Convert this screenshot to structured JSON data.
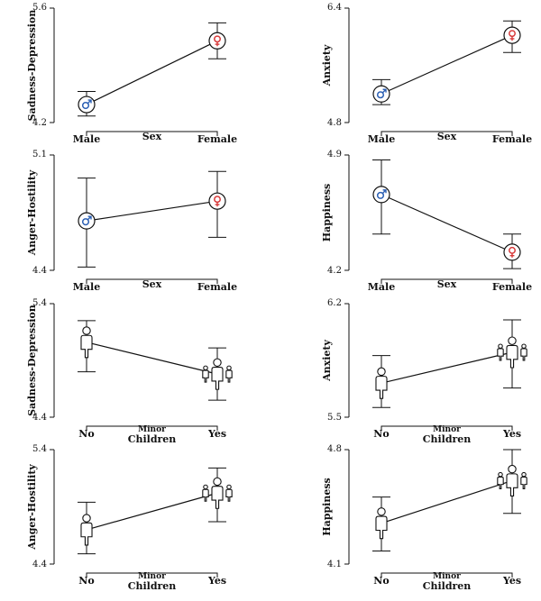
{
  "colors": {
    "male": "#2b5fb4",
    "female": "#d83a3a",
    "ink": "#111111"
  },
  "chart_data": [
    {
      "type": "line",
      "factor": "sex",
      "ylabel": "Sadness-Depression",
      "xtitle": "Sex",
      "categories": [
        "Male",
        "Female"
      ],
      "ylim": [
        4.2,
        5.6
      ],
      "ytick_labels": [
        "5.6",
        "4.2"
      ],
      "values": [
        4.42,
        5.2
      ],
      "err_low": [
        4.28,
        4.98
      ],
      "err_high": [
        4.58,
        5.42
      ]
    },
    {
      "type": "line",
      "factor": "sex",
      "ylabel": "Anxiety",
      "xtitle": "Sex",
      "categories": [
        "Male",
        "Female"
      ],
      "ylim": [
        4.8,
        6.4
      ],
      "ytick_labels": [
        "6.4",
        "4.8"
      ],
      "values": [
        5.2,
        6.02
      ],
      "err_low": [
        5.05,
        5.78
      ],
      "err_high": [
        5.4,
        6.22
      ]
    },
    {
      "type": "line",
      "factor": "sex",
      "ylabel": "Anger-Hostility",
      "xtitle": "Sex",
      "categories": [
        "Male",
        "Female"
      ],
      "ylim": [
        4.4,
        5.1
      ],
      "ytick_labels": [
        "5.1",
        "4.4"
      ],
      "values": [
        4.7,
        4.82
      ],
      "err_low": [
        4.42,
        4.6
      ],
      "err_high": [
        4.96,
        5.0
      ]
    },
    {
      "type": "line",
      "factor": "sex",
      "ylabel": "Happiness",
      "xtitle": "Sex",
      "categories": [
        "Male",
        "Female"
      ],
      "ylim": [
        4.2,
        4.9
      ],
      "ytick_labels": [
        "4.9",
        "4.2"
      ],
      "values": [
        4.66,
        4.31
      ],
      "err_low": [
        4.42,
        4.21
      ],
      "err_high": [
        4.87,
        4.42
      ]
    },
    {
      "type": "line",
      "factor": "children",
      "ylabel": "Sadness-Depression",
      "xtitle_top": "Minor",
      "xtitle_bottom": "Children",
      "categories": [
        "No",
        "Yes"
      ],
      "ylim": [
        4.4,
        5.4
      ],
      "ytick_labels": [
        "5.4",
        "4.4"
      ],
      "values": [
        5.06,
        4.78
      ],
      "err_low": [
        4.8,
        4.55
      ],
      "err_high": [
        5.25,
        5.01
      ]
    },
    {
      "type": "line",
      "factor": "children",
      "ylabel": "Anxiety",
      "xtitle_top": "Minor",
      "xtitle_bottom": "Children",
      "categories": [
        "No",
        "Yes"
      ],
      "ylim": [
        5.5,
        6.2
      ],
      "ytick_labels": [
        "6.2",
        "5.5"
      ],
      "values": [
        5.71,
        5.9
      ],
      "err_low": [
        5.56,
        5.68
      ],
      "err_high": [
        5.88,
        6.1
      ]
    },
    {
      "type": "line",
      "factor": "children",
      "ylabel": "Anger-Hostility",
      "xtitle_top": "Minor",
      "xtitle_bottom": "Children",
      "categories": [
        "No",
        "Yes"
      ],
      "ylim": [
        4.4,
        5.4
      ],
      "ytick_labels": [
        "5.4",
        "4.4"
      ],
      "values": [
        4.7,
        5.02
      ],
      "err_low": [
        4.49,
        4.77
      ],
      "err_high": [
        4.94,
        5.24
      ]
    },
    {
      "type": "line",
      "factor": "children",
      "ylabel": "Happiness",
      "xtitle_top": "Minor",
      "xtitle_bottom": "Children",
      "categories": [
        "No",
        "Yes"
      ],
      "ylim": [
        4.1,
        4.8
      ],
      "ytick_labels": [
        "4.8",
        "4.1"
      ],
      "values": [
        4.35,
        4.61
      ],
      "err_low": [
        4.18,
        4.41
      ],
      "err_high": [
        4.51,
        4.8
      ]
    }
  ]
}
